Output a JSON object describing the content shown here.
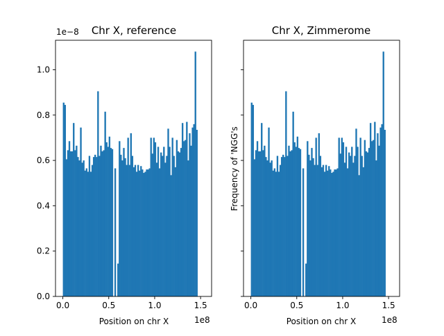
{
  "chart_data": [
    {
      "type": "bar",
      "title": "Chr X, reference",
      "xlabel": "Position on chr X",
      "ylabel": "",
      "x_offset_label": "1e8",
      "y_offset_label": "1e−8",
      "xlim": [
        -0.08,
        1.62
      ],
      "ylim": [
        0,
        1.13
      ],
      "xticks": [
        0.0,
        0.5,
        1.0,
        1.5
      ],
      "xtick_labels": [
        "0.0",
        "0.5",
        "1.0",
        "1.5"
      ],
      "yticks": [
        0.0,
        0.2,
        0.4,
        0.6,
        0.8,
        1.0
      ],
      "ytick_labels": [
        "0.0",
        "0.2",
        "0.4",
        "0.6",
        "0.8",
        "1.0"
      ],
      "bin_edges_start": 0.0,
      "bin_width": 0.0156,
      "values": [
        0.855,
        0.845,
        0.605,
        0.645,
        0.685,
        0.64,
        0.64,
        0.765,
        0.645,
        0.665,
        0.615,
        0.6,
        0.745,
        0.59,
        0.6,
        0.555,
        0.565,
        0.55,
        0.62,
        0.55,
        0.58,
        0.615,
        0.625,
        0.615,
        0.905,
        0.62,
        0.665,
        0.64,
        0.645,
        0.815,
        0.68,
        0.66,
        0.705,
        0.655,
        0.65,
        0.0,
        0.565,
        0.0,
        0.145,
        0.685,
        0.625,
        0.6,
        0.655,
        0.61,
        0.58,
        0.7,
        0.58,
        0.72,
        0.62,
        0.57,
        0.58,
        0.55,
        0.58,
        0.555,
        0.575,
        0.56,
        0.545,
        0.55,
        0.56,
        0.56,
        0.565,
        0.7,
        0.63,
        0.7,
        0.68,
        0.59,
        0.66,
        0.565,
        0.635,
        0.62,
        0.66,
        0.59,
        0.62,
        0.74,
        0.66,
        0.535,
        0.7,
        0.62,
        0.57,
        0.69,
        0.64,
        0.635,
        0.655,
        0.765,
        0.685,
        0.69,
        0.77,
        0.6,
        0.72,
        0.665,
        0.745,
        0.76,
        1.08,
        0.735
      ],
      "bar_color": "#1f77b4"
    },
    {
      "type": "bar",
      "title": "Chr X, Zimmerome",
      "xlabel": "Position on chr X",
      "ylabel": "Frequency of 'NGG's",
      "x_offset_label": "1e8",
      "xlim": [
        -0.08,
        1.62
      ],
      "ylim": [
        0,
        1.13
      ],
      "xticks": [
        0.0,
        0.5,
        1.0,
        1.5
      ],
      "xtick_labels": [
        "0.0",
        "0.5",
        "1.0",
        "1.5"
      ],
      "yticks": [
        0.0,
        0.2,
        0.4,
        0.6,
        0.8,
        1.0
      ],
      "bin_edges_start": 0.0,
      "bin_width": 0.0156,
      "values": [
        0.855,
        0.845,
        0.605,
        0.645,
        0.685,
        0.64,
        0.64,
        0.765,
        0.645,
        0.665,
        0.615,
        0.6,
        0.745,
        0.59,
        0.6,
        0.555,
        0.565,
        0.55,
        0.62,
        0.55,
        0.58,
        0.615,
        0.625,
        0.615,
        0.905,
        0.62,
        0.665,
        0.64,
        0.645,
        0.815,
        0.68,
        0.66,
        0.705,
        0.655,
        0.65,
        0.0,
        0.565,
        0.0,
        0.145,
        0.685,
        0.625,
        0.6,
        0.655,
        0.61,
        0.58,
        0.7,
        0.58,
        0.72,
        0.62,
        0.57,
        0.58,
        0.55,
        0.58,
        0.555,
        0.575,
        0.56,
        0.545,
        0.55,
        0.56,
        0.56,
        0.565,
        0.7,
        0.63,
        0.7,
        0.68,
        0.59,
        0.66,
        0.565,
        0.635,
        0.62,
        0.66,
        0.59,
        0.62,
        0.74,
        0.66,
        0.535,
        0.7,
        0.62,
        0.57,
        0.69,
        0.64,
        0.635,
        0.655,
        0.765,
        0.685,
        0.69,
        0.77,
        0.6,
        0.72,
        0.665,
        0.745,
        0.76,
        1.08,
        0.735
      ],
      "bar_color": "#1f77b4"
    }
  ]
}
